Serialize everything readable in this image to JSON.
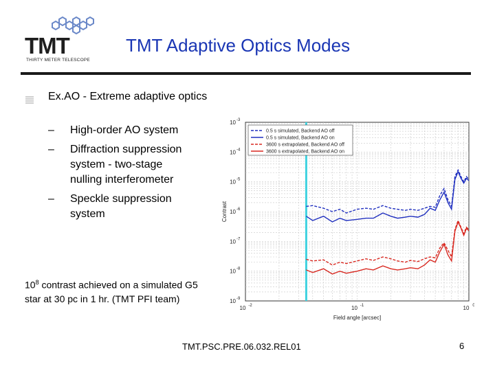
{
  "header": {
    "logo_text": "TMT",
    "logo_subtitle": "THIRTY METER TELESCOPE",
    "title": "TMT Adaptive Optics Modes"
  },
  "content": {
    "main_bullet": "Ex.AO - Extreme adaptive optics",
    "sub_bullets": [
      {
        "dash": "–",
        "lines": [
          "High-order AO system"
        ]
      },
      {
        "dash": "–",
        "lines": [
          "Diffraction suppression",
          "system - two-stage",
          "nulling interferometer"
        ]
      },
      {
        "dash": "–",
        "lines": [
          "Speckle suppression",
          "system"
        ]
      }
    ],
    "footnote_base": "10",
    "footnote_exp": "8",
    "footnote_rest_line1": " contrast achieved on a simulated G5",
    "footnote_line2": "star at 30 pc in 1 hr. (TMT PFI team)"
  },
  "footer": {
    "doc_id": "TMT.PSC.PRE.06.032.REL01",
    "page_number": "6"
  },
  "chart_data": {
    "type": "line",
    "xlabel": "Field angle [arcsec]",
    "ylabel": "Contrast",
    "x_scale": "log",
    "y_scale": "log",
    "xlim": [
      0.01,
      1
    ],
    "ylim": [
      1e-09,
      0.001
    ],
    "x_ticks": [
      {
        "base": "10",
        "exp": "-2"
      },
      {
        "base": "10",
        "exp": "-1"
      },
      {
        "base": "10",
        "exp": "0"
      }
    ],
    "y_ticks": [
      {
        "base": "10",
        "exp": "-3"
      },
      {
        "base": "10",
        "exp": "-4"
      },
      {
        "base": "10",
        "exp": "-5"
      },
      {
        "base": "10",
        "exp": "-6"
      },
      {
        "base": "10",
        "exp": "-7"
      },
      {
        "base": "10",
        "exp": "-8"
      },
      {
        "base": "10",
        "exp": "-9"
      }
    ],
    "grid": true,
    "legend_position": "top-left",
    "vertical_marker_x": 0.035,
    "vertical_marker_color": "#3fd2e0",
    "series": [
      {
        "name": "0.5 s simulated, Backend AO off",
        "color": "#1f2fbf",
        "dash": true,
        "x": [
          0.035,
          0.04,
          0.05,
          0.06,
          0.07,
          0.08,
          0.1,
          0.12,
          0.14,
          0.17,
          0.2,
          0.23,
          0.27,
          0.3,
          0.35,
          0.4,
          0.45,
          0.5,
          0.55,
          0.6,
          0.65,
          0.7,
          0.75,
          0.8,
          0.85,
          0.9,
          0.95,
          1.0
        ],
        "y": [
          1.5e-06,
          1.6e-06,
          1.3e-06,
          1e-06,
          1.2e-06,
          9e-07,
          1.2e-06,
          1.3e-06,
          1.2e-06,
          1.6e-06,
          1.3e-06,
          1.2e-06,
          1.1e-06,
          1.2e-06,
          1.1e-06,
          1.3e-06,
          1.5e-06,
          1.4e-06,
          3.5e-06,
          6e-06,
          2.5e-06,
          1.5e-06,
          1.5e-05,
          2.5e-05,
          1.5e-05,
          1e-05,
          1.5e-05,
          1.2e-05
        ]
      },
      {
        "name": "0.5 s simulated, Backend AO on",
        "color": "#1f2fbf",
        "dash": false,
        "x": [
          0.035,
          0.04,
          0.05,
          0.06,
          0.07,
          0.08,
          0.1,
          0.12,
          0.14,
          0.17,
          0.2,
          0.23,
          0.27,
          0.3,
          0.35,
          0.4,
          0.45,
          0.5,
          0.55,
          0.6,
          0.65,
          0.7,
          0.75,
          0.8,
          0.85,
          0.9,
          0.95,
          1.0
        ],
        "y": [
          7e-07,
          5e-07,
          7e-07,
          4.5e-07,
          6e-07,
          5e-07,
          5.5e-07,
          6e-07,
          6e-07,
          9e-07,
          7e-07,
          6e-07,
          6.5e-07,
          7e-07,
          6.5e-07,
          8e-07,
          1.3e-06,
          1.1e-06,
          2.5e-06,
          4.5e-06,
          2e-06,
          1.2e-06,
          1.2e-05,
          2.2e-05,
          1.3e-05,
          9e-06,
          1.3e-05,
          1.1e-05
        ]
      },
      {
        "name": "3600 s extrapolated, Backend AO off",
        "color": "#d8271f",
        "dash": true,
        "x": [
          0.035,
          0.04,
          0.05,
          0.06,
          0.07,
          0.08,
          0.1,
          0.12,
          0.14,
          0.17,
          0.2,
          0.23,
          0.27,
          0.3,
          0.35,
          0.4,
          0.45,
          0.5,
          0.55,
          0.6,
          0.65,
          0.7,
          0.75,
          0.8,
          0.85,
          0.9,
          0.95,
          1.0
        ],
        "y": [
          2.5e-08,
          2.2e-08,
          2.4e-08,
          1.6e-08,
          2e-08,
          1.8e-08,
          2.2e-08,
          2.6e-08,
          2.3e-08,
          3e-08,
          2.6e-08,
          2.2e-08,
          2e-08,
          2.3e-08,
          2.1e-08,
          2.6e-08,
          3e-08,
          2.8e-08,
          6e-08,
          9e-08,
          5e-08,
          3e-08,
          2.5e-07,
          5e-07,
          3e-07,
          1.8e-07,
          3e-07,
          2.5e-07
        ]
      },
      {
        "name": "3600 s extrapolated, Backend AO on",
        "color": "#d8271f",
        "dash": false,
        "x": [
          0.035,
          0.04,
          0.05,
          0.06,
          0.07,
          0.08,
          0.1,
          0.12,
          0.14,
          0.17,
          0.2,
          0.23,
          0.27,
          0.3,
          0.35,
          0.4,
          0.45,
          0.5,
          0.55,
          0.6,
          0.65,
          0.7,
          0.75,
          0.8,
          0.85,
          0.9,
          0.95,
          1.0
        ],
        "y": [
          1.1e-08,
          9e-09,
          1.2e-08,
          8e-09,
          1e-08,
          8.5e-09,
          1e-08,
          1.2e-08,
          1.1e-08,
          1.5e-08,
          1.2e-08,
          1.1e-08,
          1.2e-08,
          1.3e-08,
          1.2e-08,
          1.6e-08,
          2.4e-08,
          2e-08,
          4.5e-08,
          8e-08,
          3.5e-08,
          2.2e-08,
          2.2e-07,
          4.5e-07,
          2.8e-07,
          1.6e-07,
          2.7e-07,
          2.3e-07
        ]
      }
    ]
  }
}
